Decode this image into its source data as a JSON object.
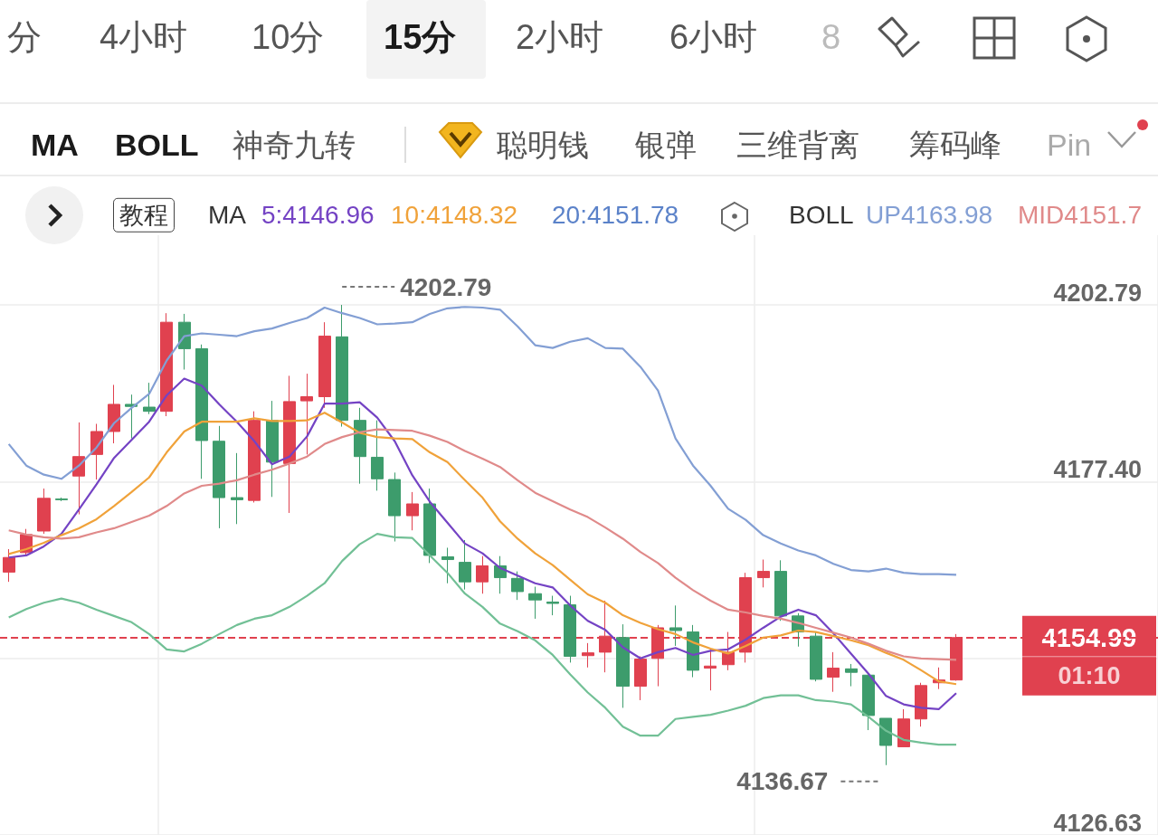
{
  "chart_data": {
    "type": "candlestick",
    "categories": [
      null,
      null,
      null,
      null,
      null,
      null,
      null,
      null,
      null,
      null,
      null,
      null,
      null,
      null,
      null,
      null,
      null,
      null,
      null,
      null,
      null,
      null,
      null,
      null,
      null,
      null,
      null,
      null,
      null,
      null,
      null,
      null,
      null,
      null,
      null,
      null,
      null,
      null,
      null,
      null,
      null,
      null,
      null,
      null,
      null,
      null,
      null,
      null,
      null,
      null,
      null,
      null,
      null,
      null,
      null
    ],
    "ohlc": [
      [
        4164.4,
        4167.7,
        4163.0,
        4166.5
      ],
      [
        4167.2,
        4170.6,
        4166.7,
        4169.8
      ],
      [
        4170.3,
        4176.4,
        4169.9,
        4175.0
      ],
      [
        4174.9,
        4175.1,
        4174.6,
        4174.8
      ],
      [
        4178.2,
        4185.9,
        4172.7,
        4181.0
      ],
      [
        4181.3,
        4185.7,
        4177.7,
        4184.6
      ],
      [
        4184.6,
        4191.3,
        4182.9,
        4188.5
      ],
      [
        4188.5,
        4189.9,
        4183.6,
        4188.2
      ],
      [
        4188.1,
        4191.6,
        4187.1,
        4187.5
      ],
      [
        4187.5,
        4201.6,
        4186.8,
        4200.3
      ],
      [
        4200.3,
        4201.5,
        4193.5,
        4196.5
      ],
      [
        4196.5,
        4197.1,
        4177.8,
        4183.3
      ],
      [
        4183.2,
        4185.4,
        4170.7,
        4175.1
      ],
      [
        4175.1,
        4181.5,
        4171.3,
        4174.8
      ],
      [
        4174.7,
        4187.5,
        4174.4,
        4186.2
      ],
      [
        4186.2,
        4189.0,
        4175.2,
        4180.2
      ],
      [
        4180.0,
        4192.6,
        4172.9,
        4188.9
      ],
      [
        4189.0,
        4192.9,
        4181.3,
        4189.6
      ],
      [
        4189.6,
        4200.3,
        4188.0,
        4198.3
      ],
      [
        4198.2,
        4202.79,
        4185.3,
        4186.2
      ],
      [
        4186.2,
        4188.0,
        4177.1,
        4181.0
      ],
      [
        4180.9,
        4186.2,
        4176.1,
        4177.8
      ],
      [
        4177.7,
        4178.7,
        4168.8,
        4172.5
      ],
      [
        4172.5,
        4175.9,
        4170.4,
        4174.2
      ],
      [
        4174.2,
        4176.4,
        4165.7,
        4166.8
      ],
      [
        4166.6,
        4167.9,
        4162.8,
        4166.2
      ],
      [
        4165.8,
        4169.0,
        4161.9,
        4163.0
      ],
      [
        4163.0,
        4166.7,
        4161.3,
        4165.3
      ],
      [
        4165.3,
        4166.7,
        4161.3,
        4163.6
      ],
      [
        4163.5,
        4164.5,
        4160.4,
        4161.6
      ],
      [
        4161.3,
        4162.3,
        4157.7,
        4160.4
      ],
      [
        4160.1,
        4161.0,
        4158.2,
        4159.9
      ],
      [
        4159.7,
        4161.0,
        4151.4,
        4152.3
      ],
      [
        4152.4,
        4154.2,
        4150.7,
        4152.8
      ],
      [
        4152.9,
        4160.3,
        4150.0,
        4155.2
      ],
      [
        4155.0,
        4156.9,
        4144.9,
        4148.0
      ],
      [
        4148.0,
        4152.3,
        4146.0,
        4151.9
      ],
      [
        4152.0,
        4156.8,
        4148.0,
        4156.4
      ],
      [
        4156.4,
        4159.6,
        4153.8,
        4156.0
      ],
      [
        4155.8,
        4156.8,
        4149.3,
        4150.3
      ],
      [
        4150.6,
        4153.3,
        4147.4,
        4150.9
      ],
      [
        4151.1,
        4155.8,
        4150.3,
        4152.9
      ],
      [
        4152.9,
        4164.3,
        4151.4,
        4163.6
      ],
      [
        4163.6,
        4166.2,
        4162.2,
        4164.5
      ],
      [
        4164.5,
        4166.1,
        4157.4,
        4158.1
      ],
      [
        4158.1,
        4158.5,
        4153.7,
        4155.8
      ],
      [
        4155.2,
        4155.8,
        4148.7,
        4149.0
      ],
      [
        4149.3,
        4152.9,
        4147.2,
        4150.6
      ],
      [
        4150.5,
        4151.2,
        4148.0,
        4150.0
      ],
      [
        4149.6,
        4149.7,
        4141.7,
        4143.8
      ],
      [
        4143.4,
        4143.4,
        4136.67,
        4139.5
      ],
      [
        4139.3,
        4144.7,
        4139.3,
        4143.3
      ],
      [
        4143.3,
        4148.5,
        4142.2,
        4148.1
      ],
      [
        4148.5,
        4150.7,
        4147.6,
        4148.9
      ],
      [
        4148.9,
        4155.5,
        4148.8,
        4154.99
      ]
    ],
    "colors": [
      "#e0414f",
      "#e0414f",
      "#e0414f",
      "#3d9c6c",
      "#e0414f",
      "#e0414f",
      "#e0414f",
      "#3d9c6c",
      "#3d9c6c",
      "#e0414f",
      "#3d9c6c",
      "#3d9c6c",
      "#3d9c6c",
      "#3d9c6c",
      "#e0414f",
      "#3d9c6c",
      "#e0414f",
      "#e0414f",
      "#e0414f",
      "#3d9c6c",
      "#3d9c6c",
      "#3d9c6c",
      "#3d9c6c",
      "#e0414f",
      "#3d9c6c",
      "#3d9c6c",
      "#3d9c6c",
      "#e0414f",
      "#3d9c6c",
      "#3d9c6c",
      "#3d9c6c",
      "#3d9c6c",
      "#3d9c6c",
      "#e0414f",
      "#e0414f",
      "#3d9c6c",
      "#e0414f",
      "#e0414f",
      "#3d9c6c",
      "#3d9c6c",
      "#e0414f",
      "#e0414f",
      "#e0414f",
      "#e0414f",
      "#3d9c6c",
      "#3d9c6c",
      "#3d9c6c",
      "#e0414f",
      "#3d9c6c",
      "#3d9c6c",
      "#3d9c6c",
      "#e0414f",
      "#e0414f",
      "#e0414f",
      "#e0414f"
    ],
    "series": [
      {
        "type": "line",
        "name": "5:4146.96",
        "color": "#7443c4",
        "values": [
          4166.5,
          4166.8,
          4168.1,
          4169.9,
          4173.4,
          4177.0,
          4180.8,
          4183.4,
          4186.0,
          4189.8,
          4192.2,
          4191.2,
          4188.5,
          4186.0,
          4183.2,
          4179.9,
          4181.0,
          4183.9,
          4188.6,
          4188.6,
          4188.8,
          4186.6,
          4183.2,
          4178.3,
          4174.5,
          4171.5,
          4168.5,
          4167.1,
          4165.0,
          4163.9,
          4162.8,
          4162.2,
          4159.6,
          4157.4,
          4156.1,
          4153.6,
          4152.0,
          4152.9,
          4153.5,
          4152.5,
          4153.1,
          4153.3,
          4154.7,
          4156.4,
          4158.0,
          4159.0,
          4158.2,
          4155.6,
          4152.7,
          4149.8,
          4146.6,
          4145.4,
          4144.9,
          4144.7,
          4147.0
        ]
      },
      {
        "type": "line",
        "name": "10:4148.32",
        "color": "#f0a23a",
        "values": [
          4167.0,
          4167.7,
          4168.6,
          4169.7,
          4170.7,
          4172.0,
          4173.9,
          4175.9,
          4178.0,
          4181.6,
          4184.6,
          4186.0,
          4186.0,
          4186.0,
          4186.5,
          4186.1,
          4186.1,
          4186.2,
          4187.3,
          4185.9,
          4184.4,
          4183.8,
          4183.6,
          4183.5,
          4181.6,
          4180.2,
          4177.6,
          4175.1,
          4171.7,
          4169.2,
          4167.1,
          4165.4,
          4163.3,
          4161.2,
          4160.0,
          4158.2,
          4157.1,
          4156.2,
          4155.5,
          4154.3,
          4153.4,
          4152.7,
          4153.8,
          4155.0,
          4155.3,
          4156.0,
          4155.8,
          4155.2,
          4154.6,
          4153.9,
          4152.8,
          4151.8,
          4150.3,
          4148.7,
          4148.3
        ]
      },
      {
        "type": "line",
        "name": "UP4163.98",
        "color": "#839fd4",
        "values": [
          4182.8,
          4179.7,
          4178.4,
          4177.8,
          4179.7,
          4182.3,
          4185.8,
          4188.0,
          4190.0,
          4194.8,
          4198.3,
          4198.7,
          4198.5,
          4198.3,
          4199.0,
          4199.4,
          4200.2,
          4200.9,
          4202.4,
          4201.6,
          4200.9,
          4200.0,
          4200.1,
          4200.3,
          4201.5,
          4202.3,
          4202.5,
          4202.4,
          4202.1,
          4199.7,
          4197.0,
          4196.6,
          4197.5,
          4198.0,
          4196.6,
          4196.5,
          4193.9,
          4190.5,
          4183.6,
          4179.7,
          4176.8,
          4173.5,
          4171.9,
          4169.7,
          4168.5,
          4167.5,
          4166.8,
          4165.6,
          4164.7,
          4164.5,
          4164.9,
          4164.3,
          4164.1,
          4164.1,
          4164.0
        ]
      },
      {
        "type": "line",
        "name": "MID4151.7",
        "color": "#e08a8a",
        "values": [
          4170.4,
          4169.8,
          4169.4,
          4169.2,
          4169.4,
          4170.1,
          4170.7,
          4171.6,
          4172.5,
          4173.9,
          4175.7,
          4176.8,
          4177.1,
          4177.6,
          4178.4,
          4179.1,
          4180.0,
          4181.0,
          4182.8,
          4183.8,
          4184.5,
          4184.9,
          4184.8,
          4184.7,
          4184.0,
          4183.1,
          4181.8,
          4180.7,
          4179.5,
          4177.6,
          4175.8,
          4174.6,
          4173.4,
          4172.3,
          4170.8,
          4169.2,
          4167.3,
          4165.7,
          4163.6,
          4161.8,
          4160.3,
          4159.0,
          4158.6,
          4158.1,
          4157.7,
          4157.1,
          4156.4,
          4155.7,
          4155.0,
          4154.1,
          4153.1,
          4152.3,
          4152.0,
          4151.9,
          4151.8
        ]
      },
      {
        "type": "line",
        "color": "#72c096",
        "values": [
          4157.9,
          4159.1,
          4160.0,
          4160.6,
          4160.0,
          4159.0,
          4158.1,
          4157.2,
          4155.5,
          4153.3,
          4153.0,
          4154.1,
          4155.5,
          4156.8,
          4157.7,
          4158.2,
          4159.4,
          4161.0,
          4162.8,
          4166.0,
          4168.4,
          4169.9,
          4169.4,
          4169.3,
          4166.8,
          4164.3,
          4161.3,
          4159.4,
          4157.0,
          4155.9,
          4154.6,
          4152.5,
          4149.7,
          4147.1,
          4144.9,
          4142.2,
          4140.9,
          4140.9,
          4143.3,
          4143.6,
          4143.9,
          4144.5,
          4145.2,
          4146.3,
          4146.7,
          4146.7,
          4146.0,
          4145.8,
          4145.4,
          4143.6,
          4141.6,
          4140.3,
          4139.9,
          4139.6,
          4139.6
        ]
      }
    ],
    "ylim": [
      4126.63,
      4212.8
    ],
    "yticks": [
      4126.63,
      {
        "value": 4152.01,
        "label": null
      },
      {
        "value": 4177.4,
        "label": "4177.40"
      },
      4202.79
    ],
    "grid": true,
    "tick_labels": "y",
    "legend": "top",
    "marker": "none",
    "ref_lines": [
      {
        "axis": "y",
        "value": 4154.99,
        "label": "4154.99",
        "color": "#e0414f",
        "line_style": "dashed"
      }
    ],
    "annotations": [
      "分",
      "4小时",
      "10分",
      "15分",
      "2小时",
      "6小时",
      "8",
      "MA",
      "BOLL",
      "神奇九转",
      "聪明钱",
      "银弹",
      "三维背离",
      "筹码峰",
      "Pin",
      "教程",
      "MA",
      "20:4151.78",
      "BOLL",
      {
        "text": "4202.79",
        "y": 4202.79
      },
      "4136.67",
      "01:10"
    ]
  }
}
